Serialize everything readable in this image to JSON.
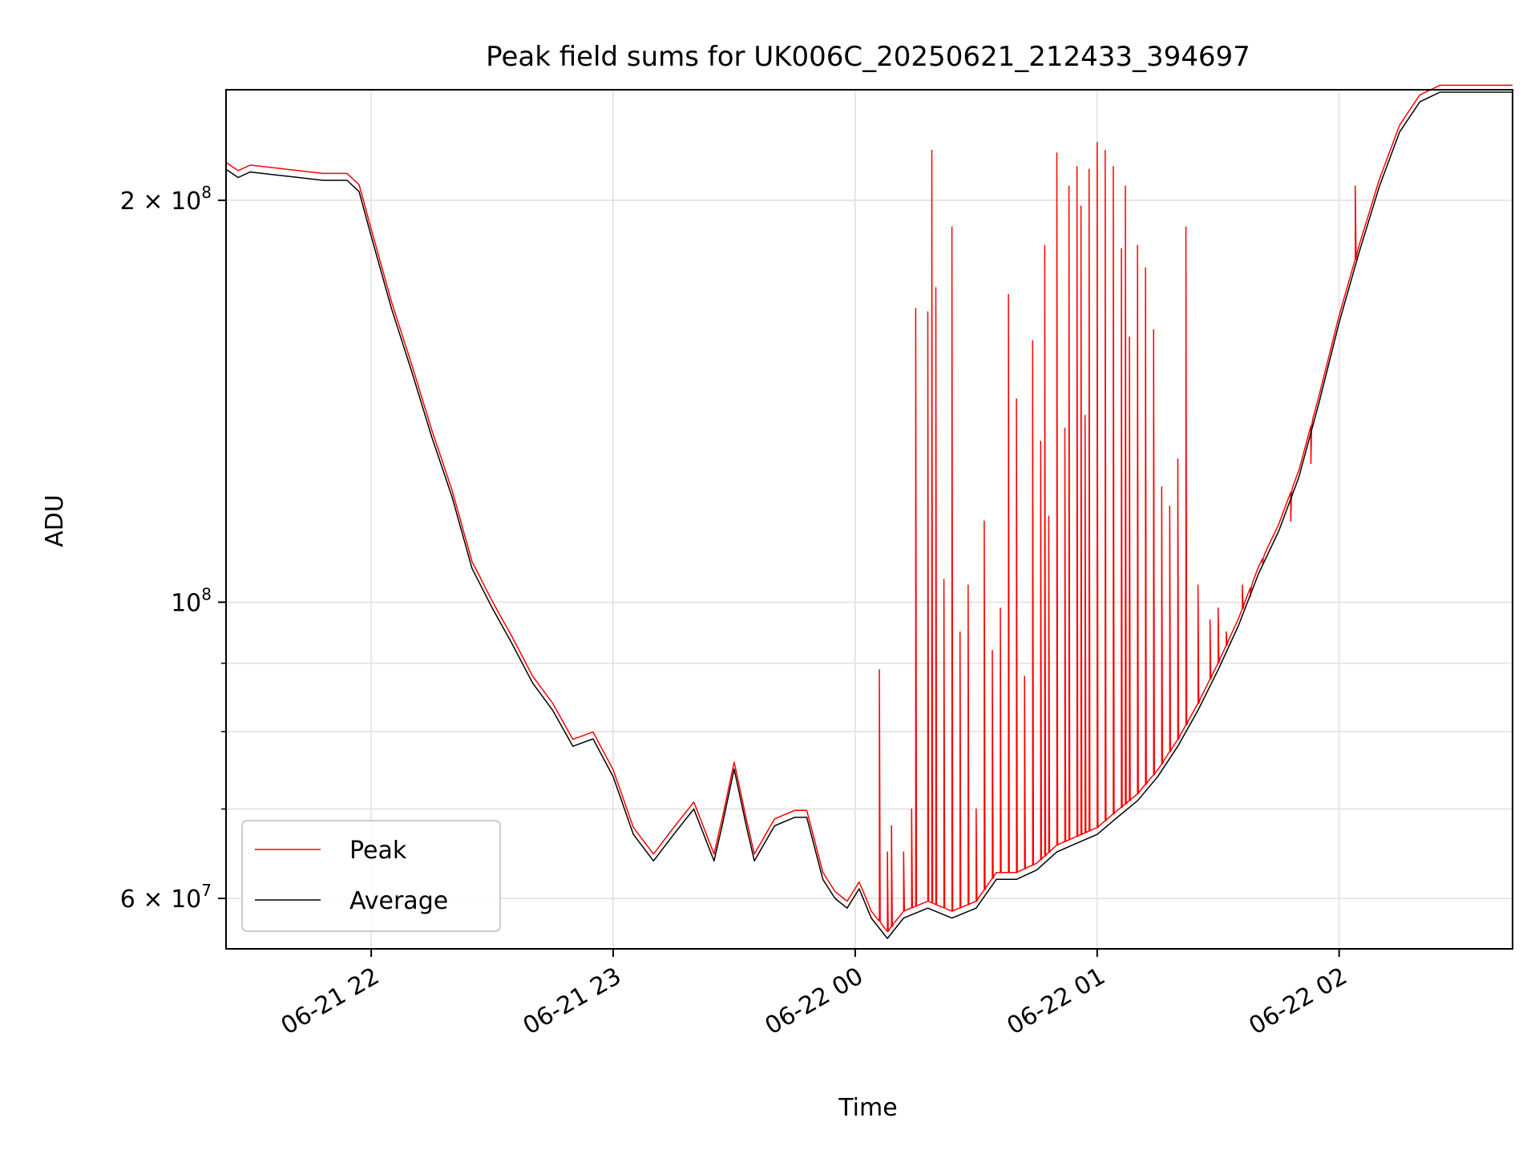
{
  "chart_data": {
    "type": "line",
    "title": "Peak field sums for UK006C_20250621_212433_394697",
    "xlabel": "Time",
    "ylabel": "ADU",
    "yscale": "log",
    "ylim": [
      55000000,
      242000000
    ],
    "xlim": [
      "2025-06-21 21:24",
      "2025-06-22 02:43"
    ],
    "grid": true,
    "legend_position": "lower-left",
    "x_ticks": [
      {
        "x": "2025-06-21 22:00",
        "label": "06-21 22"
      },
      {
        "x": "2025-06-21 23:00",
        "label": "06-21 23"
      },
      {
        "x": "2025-06-22 00:00",
        "label": "06-22 00"
      },
      {
        "x": "2025-06-22 01:00",
        "label": "06-22 01"
      },
      {
        "x": "2025-06-22 02:00",
        "label": "06-22 02"
      }
    ],
    "y_ticks": [
      {
        "y": 60000000,
        "label_base": "6 × 10",
        "label_exp": "7"
      },
      {
        "y": 100000000,
        "label_base": "10",
        "label_exp": "8"
      },
      {
        "y": 200000000,
        "label_base": "2 × 10",
        "label_exp": "8"
      }
    ],
    "y_minor_ticks": [
      70000000,
      80000000,
      90000000
    ],
    "series": [
      {
        "name": "Average",
        "color": "#000000",
        "points": [
          [
            "2025-06-21 21:24",
            211000000
          ],
          [
            "2025-06-21 21:27",
            208000000
          ],
          [
            "2025-06-21 21:30",
            210000000
          ],
          [
            "2025-06-21 21:36",
            209000000
          ],
          [
            "2025-06-21 21:42",
            208000000
          ],
          [
            "2025-06-21 21:48",
            207000000
          ],
          [
            "2025-06-21 21:54",
            207000000
          ],
          [
            "2025-06-21 21:57",
            203000000
          ],
          [
            "2025-06-21 22:00",
            188000000
          ],
          [
            "2025-06-21 22:05",
            166000000
          ],
          [
            "2025-06-21 22:10",
            149000000
          ],
          [
            "2025-06-21 22:15",
            133000000
          ],
          [
            "2025-06-21 22:20",
            120000000
          ],
          [
            "2025-06-21 22:25",
            106000000
          ],
          [
            "2025-06-21 22:30",
            99000000
          ],
          [
            "2025-06-21 22:35",
            93000000
          ],
          [
            "2025-06-21 22:40",
            87000000
          ],
          [
            "2025-06-21 22:45",
            83000000
          ],
          [
            "2025-06-21 22:50",
            78000000
          ],
          [
            "2025-06-21 22:55",
            79000000
          ],
          [
            "2025-06-21 23:00",
            74000000
          ],
          [
            "2025-06-21 23:05",
            67000000
          ],
          [
            "2025-06-21 23:10",
            64000000
          ],
          [
            "2025-06-21 23:15",
            67000000
          ],
          [
            "2025-06-21 23:20",
            70000000
          ],
          [
            "2025-06-21 23:25",
            64000000
          ],
          [
            "2025-06-21 23:27",
            68000000
          ],
          [
            "2025-06-21 23:30",
            75000000
          ],
          [
            "2025-06-21 23:33",
            68000000
          ],
          [
            "2025-06-21 23:35",
            64000000
          ],
          [
            "2025-06-21 23:40",
            68000000
          ],
          [
            "2025-06-21 23:45",
            69000000
          ],
          [
            "2025-06-21 23:48",
            69000000
          ],
          [
            "2025-06-21 23:52",
            62000000
          ],
          [
            "2025-06-21 23:55",
            60000000
          ],
          [
            "2025-06-21 23:58",
            59000000
          ],
          [
            "2025-06-22 00:01",
            61000000
          ],
          [
            "2025-06-22 00:04",
            58000000
          ],
          [
            "2025-06-22 00:08",
            56000000
          ],
          [
            "2025-06-22 00:12",
            58000000
          ],
          [
            "2025-06-22 00:18",
            59000000
          ],
          [
            "2025-06-22 00:24",
            58000000
          ],
          [
            "2025-06-22 00:30",
            59000000
          ],
          [
            "2025-06-22 00:35",
            62000000
          ],
          [
            "2025-06-22 00:40",
            62000000
          ],
          [
            "2025-06-22 00:45",
            63000000
          ],
          [
            "2025-06-22 00:50",
            65000000
          ],
          [
            "2025-06-22 00:55",
            66000000
          ],
          [
            "2025-06-22 01:00",
            67000000
          ],
          [
            "2025-06-22 01:05",
            69000000
          ],
          [
            "2025-06-22 01:10",
            71000000
          ],
          [
            "2025-06-22 01:15",
            74000000
          ],
          [
            "2025-06-22 01:20",
            78000000
          ],
          [
            "2025-06-22 01:25",
            83000000
          ],
          [
            "2025-06-22 01:30",
            89000000
          ],
          [
            "2025-06-22 01:35",
            96000000
          ],
          [
            "2025-06-22 01:40",
            105000000
          ],
          [
            "2025-06-22 01:45",
            113000000
          ],
          [
            "2025-06-22 01:50",
            124000000
          ],
          [
            "2025-06-22 01:55",
            141000000
          ],
          [
            "2025-06-22 02:00",
            162000000
          ],
          [
            "2025-06-22 02:05",
            183000000
          ],
          [
            "2025-06-22 02:10",
            205000000
          ],
          [
            "2025-06-22 02:15",
            225000000
          ],
          [
            "2025-06-22 02:20",
            237000000
          ],
          [
            "2025-06-22 02:25",
            241000000
          ],
          [
            "2025-06-22 02:30",
            241000000
          ],
          [
            "2025-06-22 02:43",
            241000000
          ]
        ]
      },
      {
        "name": "Peak",
        "color": "#ff0000",
        "spikes": [
          [
            "2025-06-22 00:06",
            89000000
          ],
          [
            "2025-06-22 00:08",
            65000000
          ],
          [
            "2025-06-22 00:09",
            68000000
          ],
          [
            "2025-06-22 00:12",
            65000000
          ],
          [
            "2025-06-22 00:14",
            70000000
          ],
          [
            "2025-06-22 00:15",
            166000000
          ],
          [
            "2025-06-22 00:18",
            165000000
          ],
          [
            "2025-06-22 00:19",
            218000000
          ],
          [
            "2025-06-22 00:20",
            172000000
          ],
          [
            "2025-06-22 00:22",
            104000000
          ],
          [
            "2025-06-22 00:24",
            191000000
          ],
          [
            "2025-06-22 00:26",
            95000000
          ],
          [
            "2025-06-22 00:28",
            103000000
          ],
          [
            "2025-06-22 00:30",
            70000000
          ],
          [
            "2025-06-22 00:32",
            115000000
          ],
          [
            "2025-06-22 00:34",
            92000000
          ],
          [
            "2025-06-22 00:36",
            99000000
          ],
          [
            "2025-06-22 00:38",
            170000000
          ],
          [
            "2025-06-22 00:40",
            142000000
          ],
          [
            "2025-06-22 00:42",
            88000000
          ],
          [
            "2025-06-22 00:44",
            157000000
          ],
          [
            "2025-06-22 00:46",
            132000000
          ],
          [
            "2025-06-22 00:47",
            185000000
          ],
          [
            "2025-06-22 00:48",
            116000000
          ],
          [
            "2025-06-22 00:50",
            217000000
          ],
          [
            "2025-06-22 00:52",
            135000000
          ],
          [
            "2025-06-22 00:53",
            205000000
          ],
          [
            "2025-06-22 00:55",
            212000000
          ],
          [
            "2025-06-22 00:56",
            198000000
          ],
          [
            "2025-06-22 00:57",
            138000000
          ],
          [
            "2025-06-22 00:58",
            211000000
          ],
          [
            "2025-06-22 01:00",
            221000000
          ],
          [
            "2025-06-22 01:02",
            218000000
          ],
          [
            "2025-06-22 01:04",
            212000000
          ],
          [
            "2025-06-22 01:06",
            184000000
          ],
          [
            "2025-06-22 01:07",
            205000000
          ],
          [
            "2025-06-22 01:08",
            158000000
          ],
          [
            "2025-06-22 01:10",
            185000000
          ],
          [
            "2025-06-22 01:12",
            178000000
          ],
          [
            "2025-06-22 01:14",
            160000000
          ],
          [
            "2025-06-22 01:16",
            122000000
          ],
          [
            "2025-06-22 01:18",
            118000000
          ],
          [
            "2025-06-22 01:20",
            128000000
          ],
          [
            "2025-06-22 01:22",
            191000000
          ],
          [
            "2025-06-22 01:25",
            103000000
          ],
          [
            "2025-06-22 01:28",
            97000000
          ],
          [
            "2025-06-22 01:30",
            99000000
          ],
          [
            "2025-06-22 01:32",
            95000000
          ],
          [
            "2025-06-22 01:36",
            103000000
          ],
          [
            "2025-06-22 01:38",
            101000000
          ],
          [
            "2025-06-22 01:41",
            107000000
          ],
          [
            "2025-06-22 01:48",
            115000000
          ],
          [
            "2025-06-22 01:53",
            127000000
          ],
          [
            "2025-06-22 02:04",
            205000000
          ]
        ]
      }
    ]
  }
}
